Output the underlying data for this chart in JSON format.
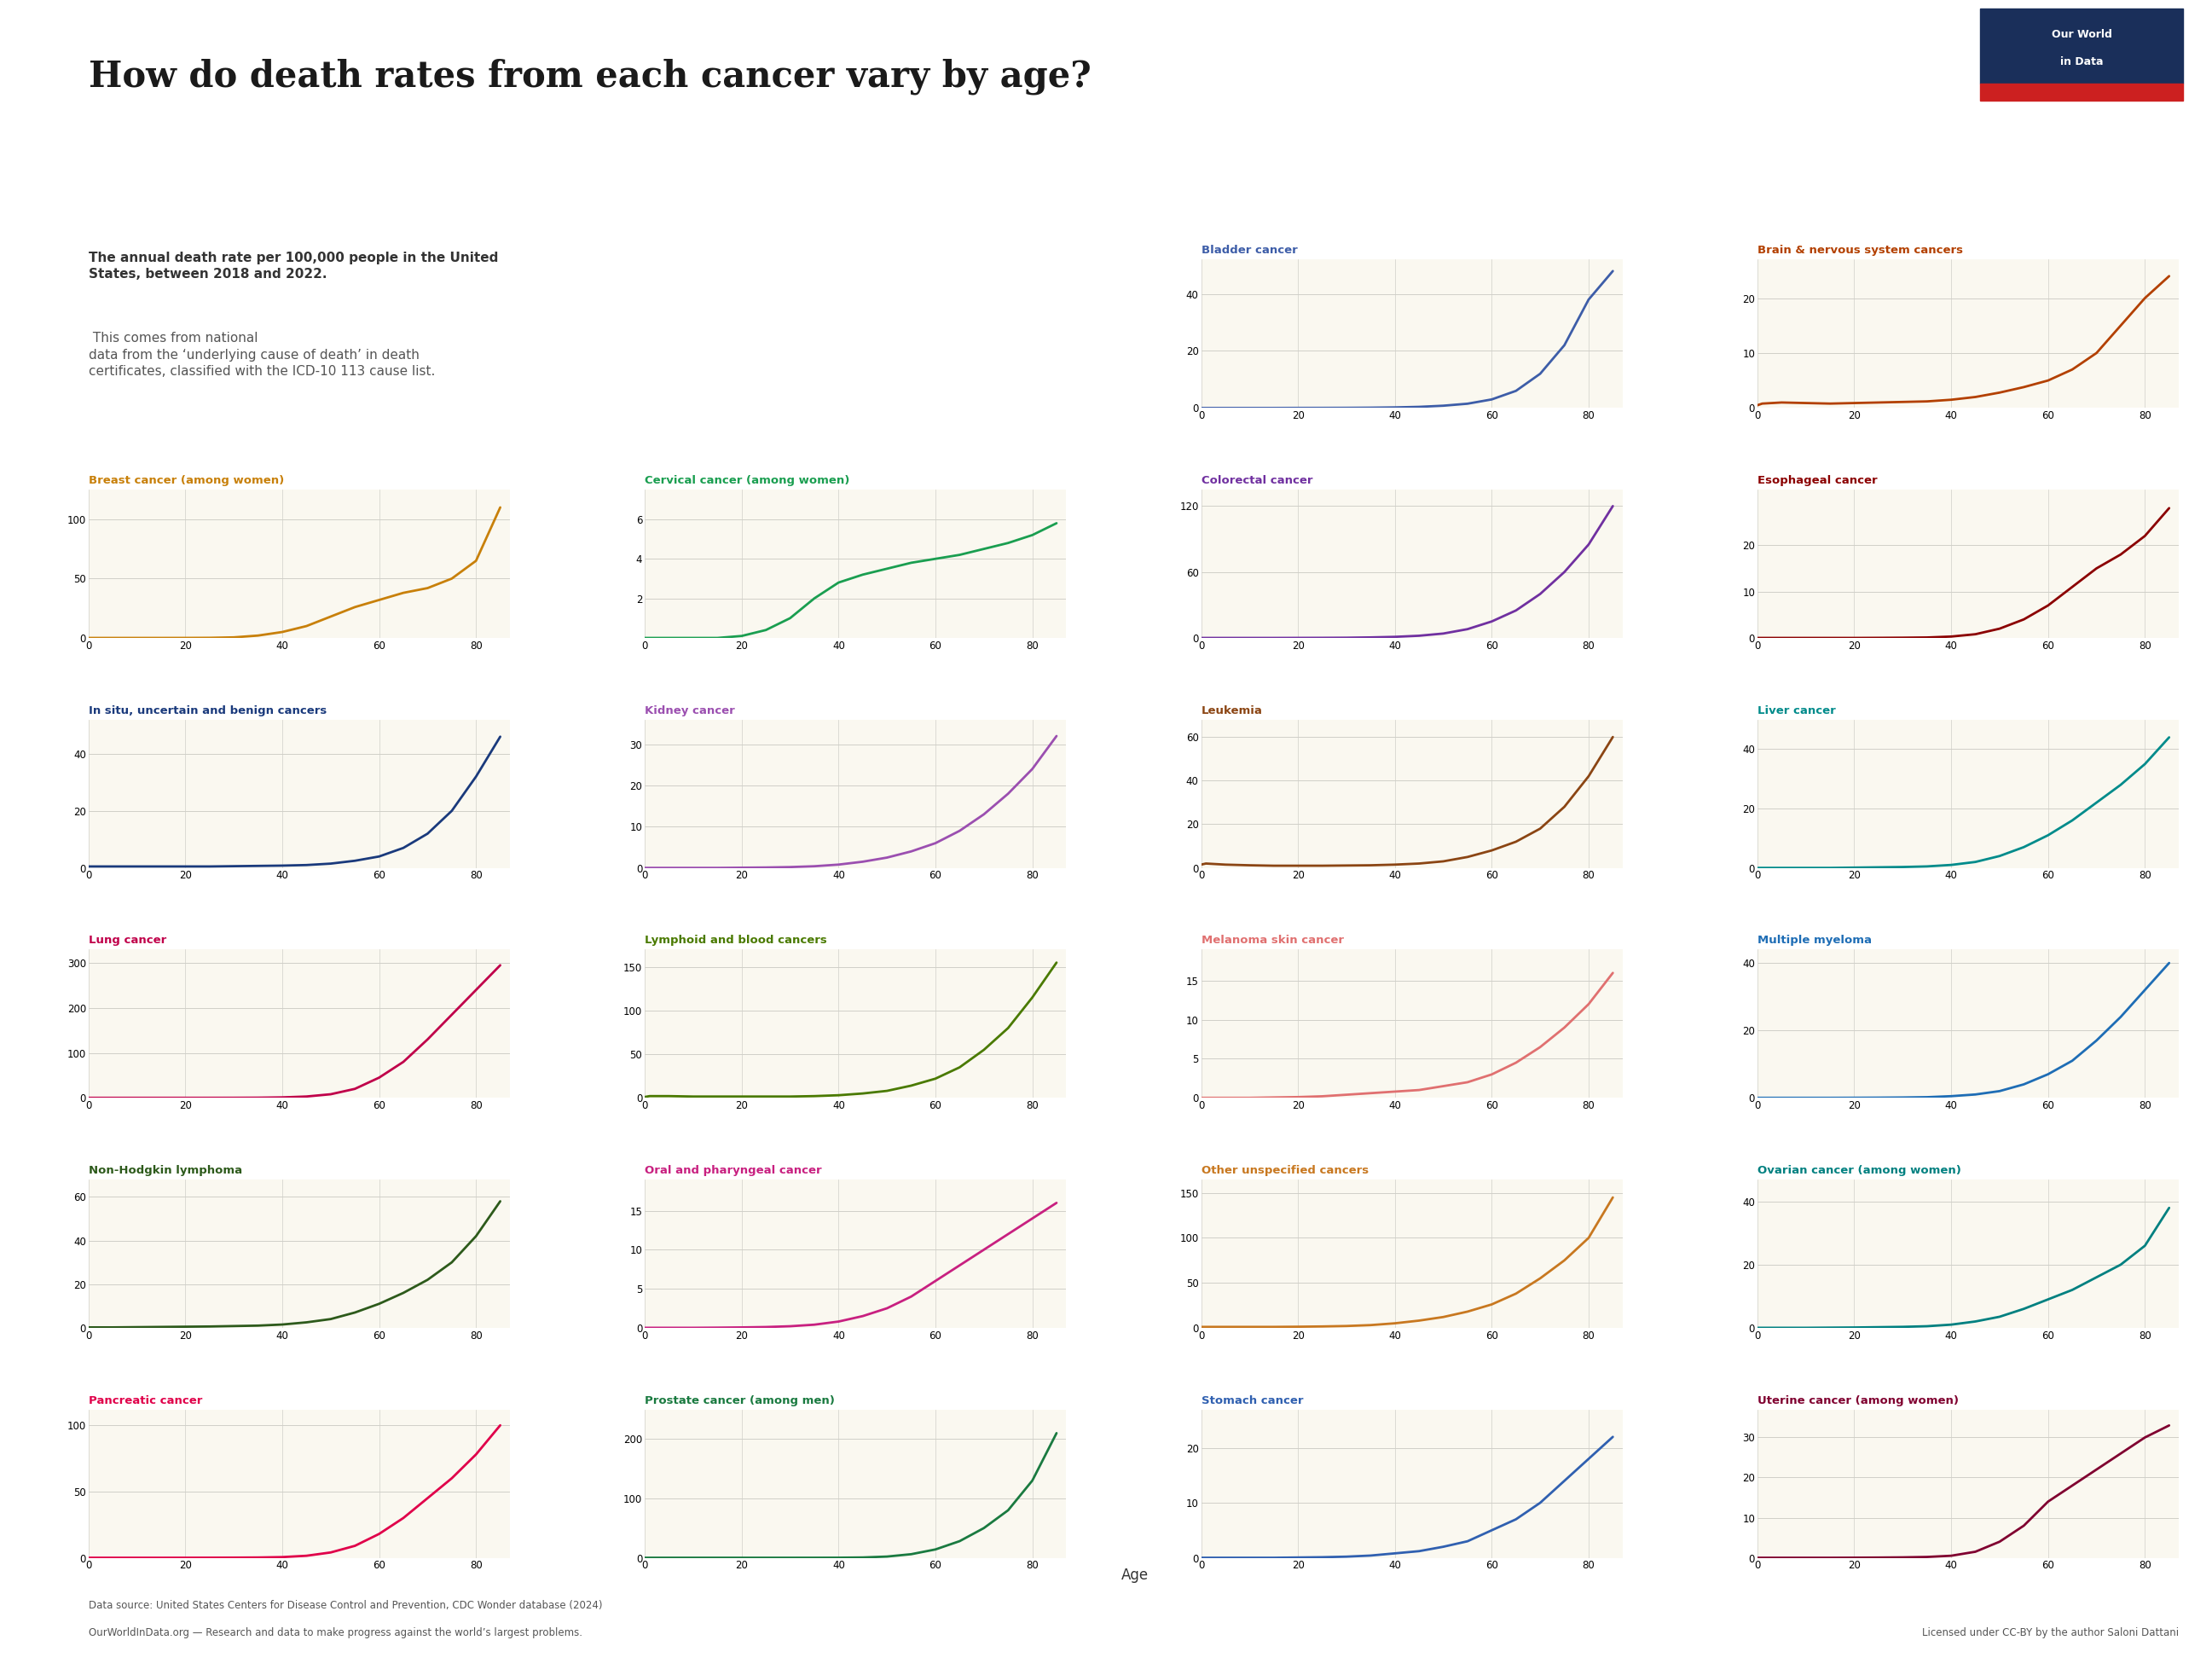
{
  "title": "How do death rates from each cancer vary by age?",
  "subtitle_bold": "The annual death rate per 100,000 people in the United\nStates, between 2018 and 2022.",
  "subtitle_normal": " This comes from national\ndata from the ‘underlying cause of death’ in death\ncertificates, classified with the ICD-10 113 cause list.",
  "footer_source": "Data source: United States Centers for Disease Control and Prevention, CDC Wonder database (2024)",
  "footer_website": "OurWorldInData.org — Research and data to make progress against the world’s largest problems.",
  "footer_license": "Licensed under CC-BY by the author Saloni Dattani",
  "background_color": "#ffffff",
  "panel_bg": "#faf8f0",
  "grid_color": "#d0cfc8",
  "cancers": [
    {
      "name": "Bladder cancer",
      "color": "#3d5da8",
      "row": 0,
      "col": 2,
      "yticks": [
        0,
        20,
        40
      ],
      "ymax": 52,
      "ages": [
        0,
        1,
        5,
        10,
        15,
        20,
        25,
        30,
        35,
        40,
        45,
        50,
        55,
        60,
        65,
        70,
        75,
        80,
        85
      ],
      "rates": [
        0,
        0,
        0,
        0,
        0,
        0.02,
        0.03,
        0.05,
        0.1,
        0.2,
        0.4,
        0.8,
        1.5,
        3,
        6,
        12,
        22,
        38,
        48
      ]
    },
    {
      "name": "Brain & nervous system cancers",
      "color": "#b34000",
      "row": 0,
      "col": 3,
      "yticks": [
        0,
        10,
        20
      ],
      "ymax": 27,
      "ages": [
        0,
        1,
        5,
        10,
        15,
        20,
        25,
        30,
        35,
        40,
        45,
        50,
        55,
        60,
        65,
        70,
        75,
        80,
        85
      ],
      "rates": [
        0.5,
        0.8,
        1.0,
        0.9,
        0.8,
        0.9,
        1.0,
        1.1,
        1.2,
        1.5,
        2.0,
        2.8,
        3.8,
        5.0,
        7.0,
        10,
        15,
        20,
        24
      ]
    },
    {
      "name": "Breast cancer (among women)",
      "color": "#c8800a",
      "row": 1,
      "col": 0,
      "yticks": [
        0,
        50,
        100
      ],
      "ymax": 125,
      "ages": [
        0,
        1,
        5,
        10,
        15,
        20,
        25,
        30,
        35,
        40,
        45,
        50,
        55,
        60,
        65,
        70,
        75,
        80,
        85
      ],
      "rates": [
        0,
        0,
        0,
        0,
        0,
        0.02,
        0.1,
        0.5,
        2,
        5,
        10,
        18,
        26,
        32,
        38,
        42,
        50,
        65,
        110
      ]
    },
    {
      "name": "Cervical cancer (among women)",
      "color": "#1a9e50",
      "row": 1,
      "col": 1,
      "yticks": [
        2,
        4,
        6
      ],
      "ymax": 7.5,
      "ages": [
        0,
        1,
        5,
        10,
        15,
        20,
        25,
        30,
        35,
        40,
        45,
        50,
        55,
        60,
        65,
        70,
        75,
        80,
        85
      ],
      "rates": [
        0,
        0,
        0,
        0,
        0,
        0.1,
        0.4,
        1.0,
        2.0,
        2.8,
        3.2,
        3.5,
        3.8,
        4.0,
        4.2,
        4.5,
        4.8,
        5.2,
        5.8
      ]
    },
    {
      "name": "Colorectal cancer",
      "color": "#7030a0",
      "row": 1,
      "col": 2,
      "yticks": [
        0,
        60,
        120
      ],
      "ymax": 135,
      "ages": [
        0,
        1,
        5,
        10,
        15,
        20,
        25,
        30,
        35,
        40,
        45,
        50,
        55,
        60,
        65,
        70,
        75,
        80,
        85
      ],
      "rates": [
        0,
        0,
        0,
        0,
        0,
        0.05,
        0.1,
        0.2,
        0.5,
        1,
        2,
        4,
        8,
        15,
        25,
        40,
        60,
        85,
        120
      ]
    },
    {
      "name": "Esophageal cancer",
      "color": "#8b0000",
      "row": 1,
      "col": 3,
      "yticks": [
        0,
        10,
        20
      ],
      "ymax": 32,
      "ages": [
        0,
        1,
        5,
        10,
        15,
        20,
        25,
        30,
        35,
        40,
        45,
        50,
        55,
        60,
        65,
        70,
        75,
        80,
        85
      ],
      "rates": [
        0,
        0,
        0,
        0,
        0,
        0,
        0.02,
        0.05,
        0.1,
        0.3,
        0.8,
        2,
        4,
        7,
        11,
        15,
        18,
        22,
        28
      ]
    },
    {
      "name": "In situ, uncertain and benign cancers",
      "color": "#1a3a7c",
      "row": 2,
      "col": 0,
      "yticks": [
        0,
        20,
        40
      ],
      "ymax": 52,
      "ages": [
        0,
        1,
        5,
        10,
        15,
        20,
        25,
        30,
        35,
        40,
        45,
        50,
        55,
        60,
        65,
        70,
        75,
        80,
        85
      ],
      "rates": [
        0.5,
        0.5,
        0.5,
        0.5,
        0.5,
        0.5,
        0.5,
        0.6,
        0.7,
        0.8,
        1.0,
        1.5,
        2.5,
        4,
        7,
        12,
        20,
        32,
        46
      ]
    },
    {
      "name": "Kidney cancer",
      "color": "#9b4fb0",
      "row": 2,
      "col": 1,
      "yticks": [
        0,
        10,
        20,
        30
      ],
      "ymax": 36,
      "ages": [
        0,
        1,
        5,
        10,
        15,
        20,
        25,
        30,
        35,
        40,
        45,
        50,
        55,
        60,
        65,
        70,
        75,
        80,
        85
      ],
      "rates": [
        0,
        0,
        0,
        0,
        0,
        0.05,
        0.1,
        0.2,
        0.4,
        0.8,
        1.5,
        2.5,
        4,
        6,
        9,
        13,
        18,
        24,
        32
      ]
    },
    {
      "name": "Leukemia",
      "color": "#8b4513",
      "row": 2,
      "col": 2,
      "yticks": [
        0,
        20,
        40,
        60
      ],
      "ymax": 68,
      "ages": [
        0,
        1,
        5,
        10,
        15,
        20,
        25,
        30,
        35,
        40,
        45,
        50,
        55,
        60,
        65,
        70,
        75,
        80,
        85
      ],
      "rates": [
        1.5,
        2.0,
        1.5,
        1.2,
        1.0,
        1.0,
        1.0,
        1.1,
        1.2,
        1.5,
        2.0,
        3.0,
        5,
        8,
        12,
        18,
        28,
        42,
        60
      ]
    },
    {
      "name": "Liver cancer",
      "color": "#008b8b",
      "row": 2,
      "col": 3,
      "yticks": [
        0,
        20,
        40
      ],
      "ymax": 50,
      "ages": [
        0,
        1,
        5,
        10,
        15,
        20,
        25,
        30,
        35,
        40,
        45,
        50,
        55,
        60,
        65,
        70,
        75,
        80,
        85
      ],
      "rates": [
        0,
        0,
        0,
        0,
        0,
        0.1,
        0.2,
        0.3,
        0.5,
        1.0,
        2.0,
        4,
        7,
        11,
        16,
        22,
        28,
        35,
        44
      ]
    },
    {
      "name": "Lung cancer",
      "color": "#c0004a",
      "row": 3,
      "col": 0,
      "yticks": [
        0,
        100,
        200,
        300
      ],
      "ymax": 330,
      "ages": [
        0,
        1,
        5,
        10,
        15,
        20,
        25,
        30,
        35,
        40,
        45,
        50,
        55,
        60,
        65,
        70,
        75,
        80,
        85
      ],
      "rates": [
        0,
        0,
        0,
        0,
        0,
        0.02,
        0.05,
        0.1,
        0.3,
        1,
        3,
        8,
        20,
        45,
        80,
        130,
        185,
        240,
        295
      ]
    },
    {
      "name": "Lymphoid and blood cancers",
      "color": "#4a7a00",
      "row": 3,
      "col": 1,
      "yticks": [
        0,
        50,
        100,
        150
      ],
      "ymax": 170,
      "ages": [
        0,
        1,
        5,
        10,
        15,
        20,
        25,
        30,
        35,
        40,
        45,
        50,
        55,
        60,
        65,
        70,
        75,
        80,
        85
      ],
      "rates": [
        1,
        2,
        2,
        1.5,
        1.5,
        1.5,
        1.5,
        1.5,
        2,
        3,
        5,
        8,
        14,
        22,
        35,
        55,
        80,
        115,
        155
      ]
    },
    {
      "name": "Melanoma skin cancer",
      "color": "#e07070",
      "row": 3,
      "col": 2,
      "yticks": [
        0,
        5,
        10,
        15
      ],
      "ymax": 19,
      "ages": [
        0,
        1,
        5,
        10,
        15,
        20,
        25,
        30,
        35,
        40,
        45,
        50,
        55,
        60,
        65,
        70,
        75,
        80,
        85
      ],
      "rates": [
        0,
        0,
        0,
        0,
        0.05,
        0.1,
        0.2,
        0.4,
        0.6,
        0.8,
        1.0,
        1.5,
        2.0,
        3,
        4.5,
        6.5,
        9,
        12,
        16
      ]
    },
    {
      "name": "Multiple myeloma",
      "color": "#1e6db5",
      "row": 3,
      "col": 3,
      "yticks": [
        0,
        20,
        40
      ],
      "ymax": 44,
      "ages": [
        0,
        1,
        5,
        10,
        15,
        20,
        25,
        30,
        35,
        40,
        45,
        50,
        55,
        60,
        65,
        70,
        75,
        80,
        85
      ],
      "rates": [
        0,
        0,
        0,
        0,
        0,
        0.02,
        0.05,
        0.1,
        0.2,
        0.5,
        1.0,
        2.0,
        4,
        7,
        11,
        17,
        24,
        32,
        40
      ]
    },
    {
      "name": "Non-Hodgkin lymphoma",
      "color": "#2d5a1b",
      "row": 4,
      "col": 0,
      "yticks": [
        0,
        20,
        40,
        60
      ],
      "ymax": 68,
      "ages": [
        0,
        1,
        5,
        10,
        15,
        20,
        25,
        30,
        35,
        40,
        45,
        50,
        55,
        60,
        65,
        70,
        75,
        80,
        85
      ],
      "rates": [
        0.2,
        0.2,
        0.2,
        0.3,
        0.4,
        0.5,
        0.6,
        0.8,
        1.0,
        1.5,
        2.5,
        4,
        7,
        11,
        16,
        22,
        30,
        42,
        58
      ]
    },
    {
      "name": "Oral and pharyngeal cancer",
      "color": "#c82080",
      "row": 4,
      "col": 1,
      "yticks": [
        0,
        5,
        10,
        15
      ],
      "ymax": 19,
      "ages": [
        0,
        1,
        5,
        10,
        15,
        20,
        25,
        30,
        35,
        40,
        45,
        50,
        55,
        60,
        65,
        70,
        75,
        80,
        85
      ],
      "rates": [
        0,
        0,
        0,
        0,
        0.02,
        0.05,
        0.1,
        0.2,
        0.4,
        0.8,
        1.5,
        2.5,
        4,
        6,
        8,
        10,
        12,
        14,
        16
      ]
    },
    {
      "name": "Other unspecified cancers",
      "color": "#c87820",
      "row": 4,
      "col": 2,
      "yticks": [
        0,
        50,
        100,
        150
      ],
      "ymax": 165,
      "ages": [
        0,
        1,
        5,
        10,
        15,
        20,
        25,
        30,
        35,
        40,
        45,
        50,
        55,
        60,
        65,
        70,
        75,
        80,
        85
      ],
      "rates": [
        1,
        1,
        1,
        1,
        1,
        1.2,
        1.5,
        2,
        3,
        5,
        8,
        12,
        18,
        26,
        38,
        55,
        75,
        100,
        145
      ]
    },
    {
      "name": "Ovarian cancer (among women)",
      "color": "#008080",
      "row": 4,
      "col": 3,
      "yticks": [
        0,
        20,
        40
      ],
      "ymax": 47,
      "ages": [
        0,
        1,
        5,
        10,
        15,
        20,
        25,
        30,
        35,
        40,
        45,
        50,
        55,
        60,
        65,
        70,
        75,
        80,
        85
      ],
      "rates": [
        0,
        0,
        0,
        0,
        0.05,
        0.1,
        0.2,
        0.3,
        0.5,
        1.0,
        2.0,
        3.5,
        6,
        9,
        12,
        16,
        20,
        26,
        38
      ]
    },
    {
      "name": "Pancreatic cancer",
      "color": "#e0004a",
      "row": 5,
      "col": 0,
      "yticks": [
        0,
        50,
        100
      ],
      "ymax": 112,
      "ages": [
        0,
        1,
        5,
        10,
        15,
        20,
        25,
        30,
        35,
        40,
        45,
        50,
        55,
        60,
        65,
        70,
        75,
        80,
        85
      ],
      "rates": [
        0,
        0,
        0,
        0,
        0,
        0.02,
        0.05,
        0.1,
        0.2,
        0.5,
        1.5,
        4,
        9,
        18,
        30,
        45,
        60,
        78,
        100
      ]
    },
    {
      "name": "Prostate cancer (among men)",
      "color": "#1a7a40",
      "row": 5,
      "col": 1,
      "yticks": [
        0,
        100,
        200
      ],
      "ymax": 250,
      "ages": [
        0,
        1,
        5,
        10,
        15,
        20,
        25,
        30,
        35,
        40,
        45,
        50,
        55,
        60,
        65,
        70,
        75,
        80,
        85
      ],
      "rates": [
        0,
        0,
        0,
        0,
        0,
        0,
        0,
        0,
        0.02,
        0.1,
        0.5,
        2,
        6,
        14,
        28,
        50,
        80,
        130,
        210
      ]
    },
    {
      "name": "Stomach cancer",
      "color": "#3060b0",
      "row": 5,
      "col": 2,
      "yticks": [
        0,
        10,
        20
      ],
      "ymax": 27,
      "ages": [
        0,
        1,
        5,
        10,
        15,
        20,
        25,
        30,
        35,
        40,
        45,
        50,
        55,
        60,
        65,
        70,
        75,
        80,
        85
      ],
      "rates": [
        0,
        0,
        0,
        0,
        0,
        0.05,
        0.1,
        0.2,
        0.4,
        0.8,
        1.2,
        2,
        3,
        5,
        7,
        10,
        14,
        18,
        22
      ]
    },
    {
      "name": "Uterine cancer (among women)",
      "color": "#800030",
      "row": 5,
      "col": 3,
      "yticks": [
        0,
        10,
        20,
        30
      ],
      "ymax": 37,
      "ages": [
        0,
        1,
        5,
        10,
        15,
        20,
        25,
        30,
        35,
        40,
        45,
        50,
        55,
        60,
        65,
        70,
        75,
        80,
        85
      ],
      "rates": [
        0,
        0,
        0,
        0,
        0,
        0.02,
        0.05,
        0.1,
        0.2,
        0.5,
        1.5,
        4,
        8,
        14,
        18,
        22,
        26,
        30,
        33
      ]
    }
  ]
}
